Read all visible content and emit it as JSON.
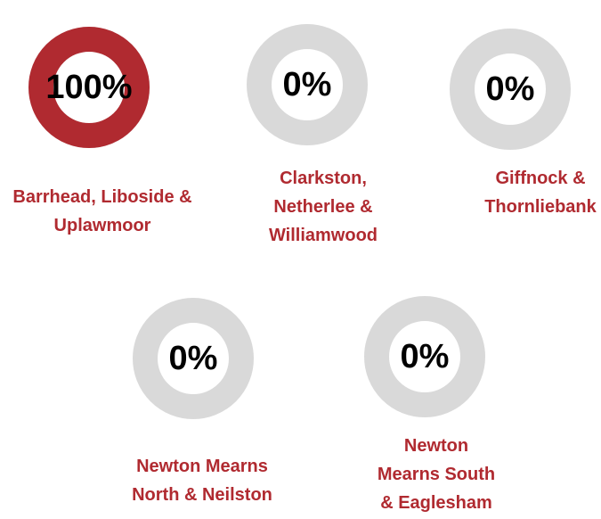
{
  "chart_data": [
    {
      "type": "donut",
      "title": "Barrhead, Liboside & Uplawmoor",
      "values": [
        100
      ],
      "value_labels": [
        "100%"
      ],
      "color": "#b02a30",
      "track_color": "#d9d9d9"
    },
    {
      "type": "donut",
      "title": "Clarkston, Netherlee & Williamwood",
      "values": [
        0
      ],
      "value_labels": [
        "0%"
      ],
      "color": "#b02a30",
      "track_color": "#d9d9d9"
    },
    {
      "type": "donut",
      "title": "Giffnock & Thornliebank",
      "values": [
        0
      ],
      "value_labels": [
        "0%"
      ],
      "color": "#b02a30",
      "track_color": "#d9d9d9"
    },
    {
      "type": "donut",
      "title": "Newton Mearns North & Neilston",
      "values": [
        0
      ],
      "value_labels": [
        "0%"
      ],
      "color": "#b02a30",
      "track_color": "#d9d9d9"
    },
    {
      "type": "donut",
      "title": "Newton Mearns South & Eaglesham",
      "values": [
        0
      ],
      "value_labels": [
        "0%"
      ],
      "color": "#b02a30",
      "track_color": "#d9d9d9"
    }
  ]
}
